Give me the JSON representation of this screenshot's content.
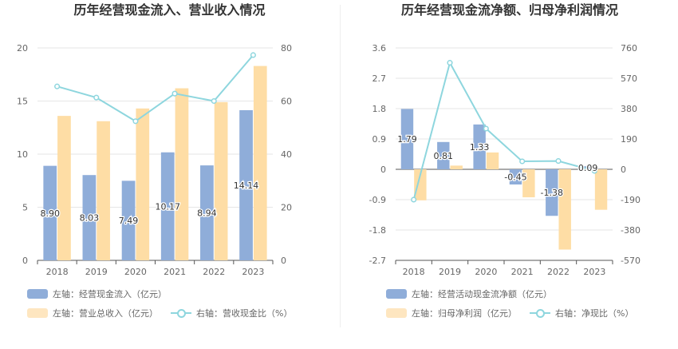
{
  "colors": {
    "blue": "#8fadd9",
    "orange": "#fedda5",
    "teal": "#8ed6de"
  },
  "chart_data": [
    {
      "type": "bar",
      "title": "历年经营现金流入、营业收入情况",
      "categories": [
        "2018",
        "2019",
        "2020",
        "2021",
        "2022",
        "2023"
      ],
      "left_axis": {
        "ylim": [
          0,
          20
        ],
        "ticks": [
          "0",
          "5",
          "10",
          "15",
          "20"
        ]
      },
      "right_axis": {
        "ylim": [
          0,
          80
        ],
        "ticks": [
          "0",
          "20",
          "40",
          "60",
          "80"
        ]
      },
      "series": [
        {
          "name": "左轴：经营现金流入（亿元）",
          "axis": "left",
          "kind": "bar",
          "values": [
            8.9,
            8.03,
            7.49,
            10.17,
            8.94,
            14.14
          ],
          "labels": [
            "8.90",
            "8.03",
            "7.49",
            "10.17",
            "8.94",
            "14.14"
          ]
        },
        {
          "name": "左轴：营业总收入（亿元）",
          "axis": "left",
          "kind": "bar",
          "values": [
            13.6,
            13.1,
            14.3,
            16.2,
            14.9,
            18.3
          ]
        },
        {
          "name": "右轴：营收现金比（%）",
          "axis": "right",
          "kind": "line",
          "values": [
            65.5,
            61.3,
            52.4,
            62.8,
            60.0,
            77.3
          ]
        }
      ],
      "grid": true
    },
    {
      "type": "bar",
      "title": "历年经营现金流净额、归母净利润情况",
      "categories": [
        "2018",
        "2019",
        "2020",
        "2021",
        "2022",
        "2023"
      ],
      "left_axis": {
        "ylim": [
          -2.7,
          3.6
        ],
        "ticks": [
          "3.6",
          "2.7",
          "1.8",
          "0.9",
          "0",
          "-0.9",
          "-1.8",
          "-2.7"
        ]
      },
      "right_axis": {
        "ylim": [
          -570,
          760
        ],
        "ticks": [
          "760",
          "570",
          "380",
          "190",
          "0",
          "-190",
          "-380",
          "-570"
        ]
      },
      "series": [
        {
          "name": "左轴：经营活动现金流净额（亿元）",
          "axis": "left",
          "kind": "bar",
          "values": [
            1.79,
            0.81,
            1.33,
            -0.45,
            -1.38,
            0.09
          ],
          "labels": [
            "1.79",
            "0.81",
            "1.33",
            "-0.45",
            "-1.38",
            "0.09"
          ]
        },
        {
          "name": "左轴：归母净利润（亿元）",
          "axis": "left",
          "kind": "bar",
          "values": [
            -0.92,
            0.11,
            0.5,
            -0.83,
            -2.38,
            -1.2
          ]
        },
        {
          "name": "右轴：净现比（%）",
          "axis": "right",
          "kind": "line",
          "values": [
            -190,
            667,
            255,
            50,
            52,
            -10
          ]
        }
      ],
      "grid": true
    }
  ]
}
